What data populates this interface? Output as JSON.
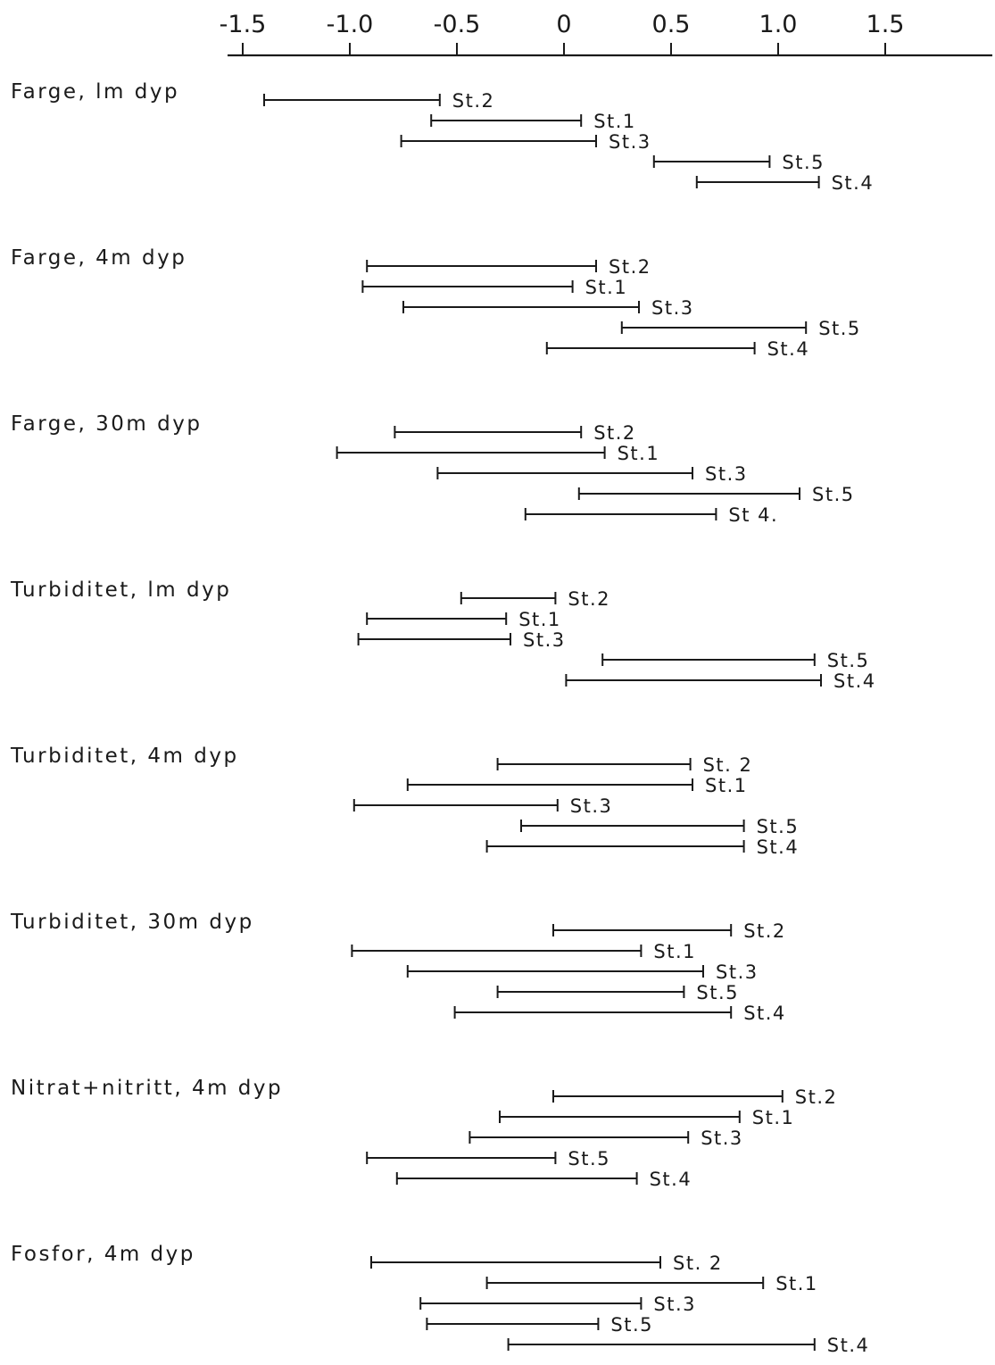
{
  "chart_data": {
    "type": "interval",
    "xlabel": "",
    "ylabel": "",
    "x_ticks": [
      "-1.5",
      "-1.0",
      "-0.5",
      "0",
      "0.5",
      "1.0",
      "1.5"
    ],
    "x_tick_values": [
      -1.5,
      -1.0,
      -0.5,
      0,
      0.5,
      1.0,
      1.5
    ],
    "xlim": [
      -1.65,
      1.95
    ],
    "axis_position": "top",
    "grid": false,
    "ink_color": "#1a1a1a",
    "groups": [
      {
        "label": "Farge, lm dyp",
        "intervals": [
          {
            "station": "St.2",
            "low": -1.4,
            "high": -0.58
          },
          {
            "station": "St.1",
            "low": -0.62,
            "high": 0.08
          },
          {
            "station": "St.3",
            "low": -0.76,
            "high": 0.15
          },
          {
            "station": "St.5",
            "low": 0.42,
            "high": 0.96
          },
          {
            "station": "St.4",
            "low": 0.62,
            "high": 1.19
          }
        ]
      },
      {
        "label": "Farge, 4m dyp",
        "intervals": [
          {
            "station": "St.2",
            "low": -0.92,
            "high": 0.15
          },
          {
            "station": "St.1",
            "low": -0.94,
            "high": 0.04
          },
          {
            "station": "St.3",
            "low": -0.75,
            "high": 0.35
          },
          {
            "station": "St.5",
            "low": 0.27,
            "high": 1.13
          },
          {
            "station": "St.4",
            "low": -0.08,
            "high": 0.89
          }
        ]
      },
      {
        "label": "Farge, 30m dyp",
        "intervals": [
          {
            "station": "St.2",
            "low": -0.79,
            "high": 0.08
          },
          {
            "station": "St.1",
            "low": -1.06,
            "high": 0.19
          },
          {
            "station": "St.3",
            "low": -0.59,
            "high": 0.6
          },
          {
            "station": "St.5",
            "low": 0.07,
            "high": 1.1
          },
          {
            "station": "St 4.",
            "low": -0.18,
            "high": 0.71
          }
        ]
      },
      {
        "label": "Turbiditet, lm dyp",
        "intervals": [
          {
            "station": "St.2",
            "low": -0.48,
            "high": -0.04
          },
          {
            "station": "St.1",
            "low": -0.92,
            "high": -0.27
          },
          {
            "station": "St.3",
            "low": -0.96,
            "high": -0.25
          },
          {
            "station": "St.5",
            "low": 0.18,
            "high": 1.17
          },
          {
            "station": "St.4",
            "low": 0.01,
            "high": 1.2
          }
        ]
      },
      {
        "label": "Turbiditet, 4m dyp",
        "intervals": [
          {
            "station": "St. 2",
            "low": -0.31,
            "high": 0.59
          },
          {
            "station": "St.1",
            "low": -0.73,
            "high": 0.6
          },
          {
            "station": "St.3",
            "low": -0.98,
            "high": -0.03
          },
          {
            "station": "St.5",
            "low": -0.2,
            "high": 0.84
          },
          {
            "station": "St.4",
            "low": -0.36,
            "high": 0.84
          }
        ]
      },
      {
        "label": "Turbiditet, 30m dyp",
        "intervals": [
          {
            "station": "St.2",
            "low": -0.05,
            "high": 0.78
          },
          {
            "station": "St.1",
            "low": -0.99,
            "high": 0.36
          },
          {
            "station": "St.3",
            "low": -0.73,
            "high": 0.65
          },
          {
            "station": "St.5",
            "low": -0.31,
            "high": 0.56
          },
          {
            "station": "St.4",
            "low": -0.51,
            "high": 0.78
          }
        ]
      },
      {
        "label": "Nitrat+nitritt, 4m dyp",
        "intervals": [
          {
            "station": "St.2",
            "low": -0.05,
            "high": 1.02
          },
          {
            "station": "St.1",
            "low": -0.3,
            "high": 0.82
          },
          {
            "station": "St.3",
            "low": -0.44,
            "high": 0.58
          },
          {
            "station": "St.5",
            "low": -0.92,
            "high": -0.04
          },
          {
            "station": "St.4",
            "low": -0.78,
            "high": 0.34
          }
        ]
      },
      {
        "label": "Fosfor, 4m dyp",
        "intervals": [
          {
            "station": "St. 2",
            "low": -0.9,
            "high": 0.45
          },
          {
            "station": "St.1",
            "low": -0.36,
            "high": 0.93
          },
          {
            "station": "St.3",
            "low": -0.67,
            "high": 0.36
          },
          {
            "station": "St.5",
            "low": -0.64,
            "high": 0.16
          },
          {
            "station": "St.4",
            "low": -0.26,
            "high": 1.17
          }
        ]
      }
    ]
  }
}
